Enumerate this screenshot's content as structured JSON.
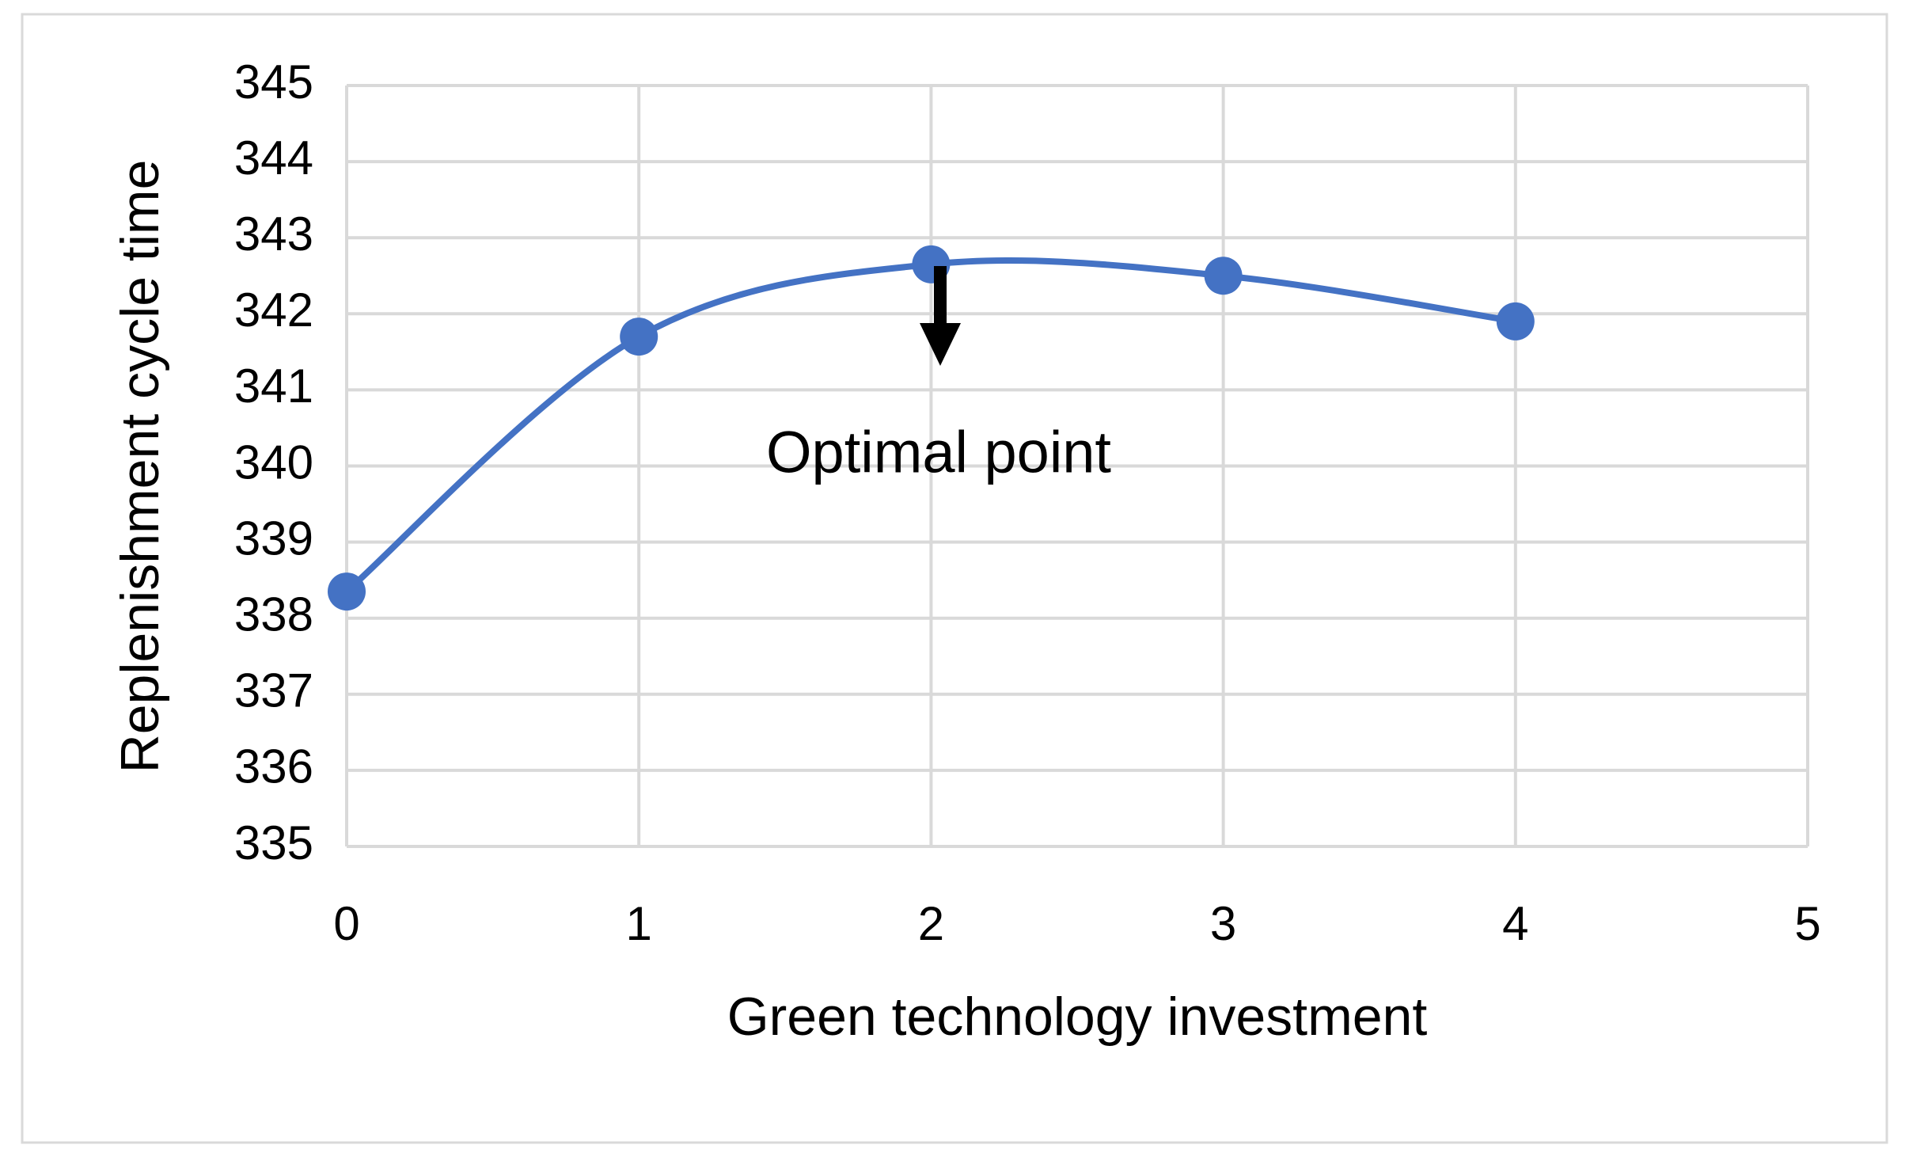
{
  "chart_data": {
    "type": "scatter",
    "xlabel": "Green technology investment",
    "ylabel": "Replenishment cycle time",
    "annotation": "Optimal point",
    "series": [
      {
        "color": "#4472c4",
        "x": [
          0,
          1,
          2,
          3,
          4
        ],
        "values": [
          338.35,
          341.7,
          342.65,
          342.5,
          341.9
        ]
      }
    ],
    "xlim": [
      0,
      5
    ],
    "xticks": [
      0,
      1,
      2,
      3,
      4,
      5
    ],
    "ylim": [
      335,
      345
    ],
    "yticks": [
      335,
      336,
      337,
      338,
      339,
      340,
      341,
      342,
      343,
      344,
      345
    ],
    "grid": true,
    "smooth": true
  }
}
